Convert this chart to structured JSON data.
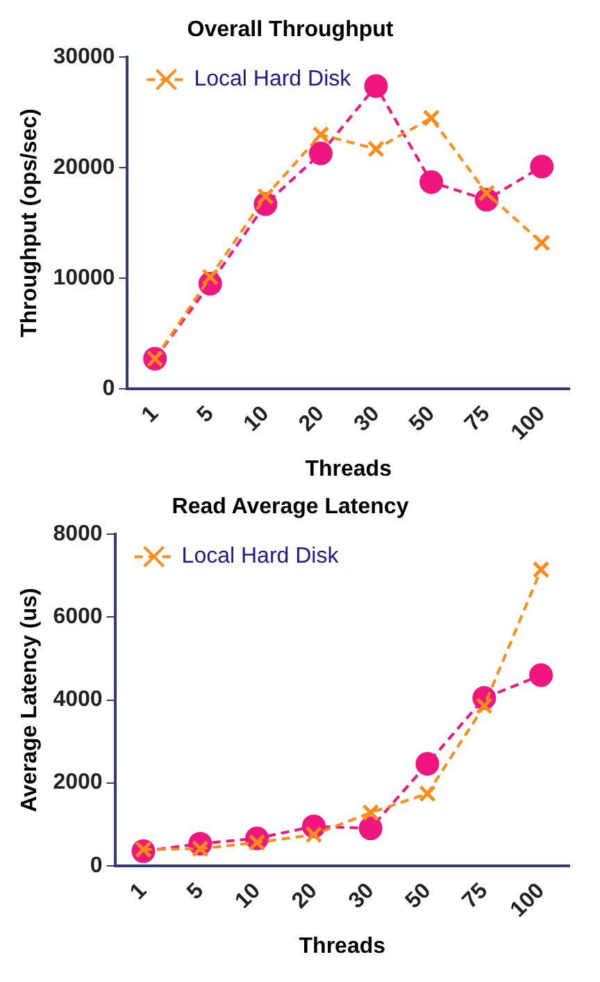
{
  "chart_data": [
    {
      "type": "line",
      "title": "Overall Throughput",
      "xlabel": "Threads",
      "ylabel": "Throughput (ops/sec)",
      "categories": [
        "1",
        "5",
        "10",
        "20",
        "30",
        "50",
        "75",
        "100"
      ],
      "ylim": [
        0,
        30000
      ],
      "yticks": [
        0,
        10000,
        20000,
        30000
      ],
      "grid": false,
      "legend": "top left",
      "line_style": "dashed",
      "series": [
        {
          "color": "#f0157f",
          "marker": "circle",
          "values": [
            2700,
            9500,
            16700,
            21300,
            27400,
            18700,
            17100,
            20100
          ]
        },
        {
          "name": "Local Hard Disk",
          "color": "#ff8c1a",
          "marker": "cross",
          "values": [
            2700,
            10100,
            17400,
            23000,
            21700,
            24500,
            17700,
            13200
          ]
        }
      ]
    },
    {
      "type": "line",
      "title": "Read Average Latency",
      "xlabel": "Threads",
      "ylabel": "Average Latency (us)",
      "categories": [
        "1",
        "5",
        "10",
        "20",
        "30",
        "50",
        "75",
        "100"
      ],
      "ylim": [
        0,
        8000
      ],
      "yticks": [
        0,
        2000,
        4000,
        6000,
        8000
      ],
      "grid": false,
      "legend": "top left",
      "line_style": "dashed",
      "series": [
        {
          "color": "#f0157f",
          "marker": "circle",
          "values": [
            350,
            530,
            660,
            950,
            900,
            2460,
            4050,
            4600
          ]
        },
        {
          "name": "Local Hard Disk",
          "color": "#ff8c1a",
          "marker": "cross",
          "values": [
            390,
            410,
            560,
            750,
            1280,
            1740,
            3860,
            7150
          ]
        }
      ]
    }
  ]
}
